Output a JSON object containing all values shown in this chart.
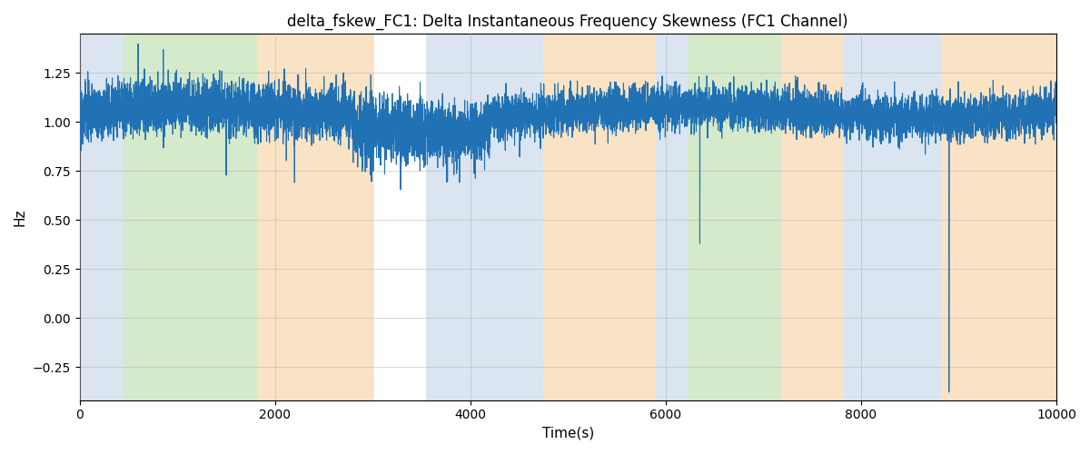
{
  "title": "delta_fskew_FC1: Delta Instantaneous Frequency Skewness (FC1 Channel)",
  "xlabel": "Time(s)",
  "ylabel": "Hz",
  "xlim": [
    0,
    10000
  ],
  "ylim": [
    -0.42,
    1.45
  ],
  "yticks": [
    1.25,
    1.0,
    0.75,
    0.5,
    0.25,
    0.0,
    -0.25
  ],
  "background_bands": [
    {
      "xmin": 0,
      "xmax": 450,
      "color": "#aec6e0",
      "alpha": 0.45
    },
    {
      "xmin": 450,
      "xmax": 1820,
      "color": "#90c878",
      "alpha": 0.38
    },
    {
      "xmin": 1820,
      "xmax": 3020,
      "color": "#f5c98a",
      "alpha": 0.5
    },
    {
      "xmin": 3020,
      "xmax": 3550,
      "color": "#ffffff",
      "alpha": 0.0
    },
    {
      "xmin": 3550,
      "xmax": 4750,
      "color": "#aec6e0",
      "alpha": 0.45
    },
    {
      "xmin": 4750,
      "xmax": 5900,
      "color": "#f5c98a",
      "alpha": 0.5
    },
    {
      "xmin": 5900,
      "xmax": 6220,
      "color": "#aec6e0",
      "alpha": 0.45
    },
    {
      "xmin": 6220,
      "xmax": 7180,
      "color": "#90c878",
      "alpha": 0.38
    },
    {
      "xmin": 7180,
      "xmax": 7820,
      "color": "#f5c98a",
      "alpha": 0.5
    },
    {
      "xmin": 7820,
      "xmax": 8820,
      "color": "#aec6e0",
      "alpha": 0.45
    },
    {
      "xmin": 8820,
      "xmax": 10000,
      "color": "#f5c98a",
      "alpha": 0.5
    }
  ],
  "line_color": "#2171b5",
  "line_width": 0.8,
  "grid_color": "#b0b0b0",
  "grid_alpha": 0.7,
  "title_fontsize": 12,
  "label_fontsize": 11,
  "tick_fontsize": 10,
  "figsize": [
    12,
    5
  ],
  "dpi": 100
}
